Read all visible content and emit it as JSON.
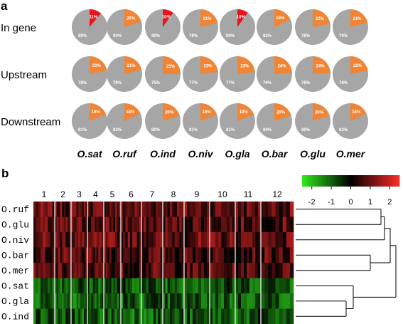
{
  "chart_data": [
    {
      "panel": "a",
      "type": "pie",
      "rows": [
        "In gene",
        "Upstream",
        "Downstream"
      ],
      "columns": [
        "O.sat",
        "O.ruf",
        "O.ind",
        "O.niv",
        "O.gla",
        "O.bar",
        "O.glu",
        "O.mer"
      ],
      "values": [
        [
          [
            11,
            89
          ],
          [
            20,
            80
          ],
          [
            10,
            90
          ],
          [
            21,
            79
          ],
          [
            10,
            90
          ],
          [
            18,
            82
          ],
          [
            22,
            78
          ],
          [
            21,
            79
          ]
        ],
        [
          [
            22,
            78
          ],
          [
            21,
            79
          ],
          [
            25,
            75
          ],
          [
            23,
            77
          ],
          [
            23,
            77
          ],
          [
            24,
            76
          ],
          [
            24,
            76
          ],
          [
            22,
            78
          ]
        ],
        [
          [
            19,
            81
          ],
          [
            18,
            82
          ],
          [
            20,
            80
          ],
          [
            19,
            81
          ],
          [
            19,
            81
          ],
          [
            20,
            80
          ],
          [
            20,
            80
          ],
          [
            18,
            82
          ]
        ]
      ],
      "labels": [
        [
          [
            "11%",
            "89%"
          ],
          [
            "20%",
            "80%"
          ],
          [
            "10%",
            "90%"
          ],
          [
            "21%",
            "79%"
          ],
          [
            "10%",
            "90%"
          ],
          [
            "18%",
            "82%"
          ],
          [
            "22%",
            "78%"
          ],
          [
            "21%",
            "79%"
          ]
        ],
        [
          [
            "22%",
            "78%"
          ],
          [
            "21%",
            "79%"
          ],
          [
            "25%",
            "75%"
          ],
          [
            "23%",
            "77%"
          ],
          [
            "23%",
            "77%"
          ],
          [
            "24%",
            "76%"
          ],
          [
            "24%",
            "76%"
          ],
          [
            "22%",
            "78%"
          ]
        ],
        [
          [
            "19%",
            "81%"
          ],
          [
            "18%",
            "82%"
          ],
          [
            "20%",
            "80%"
          ],
          [
            "19%",
            "81%"
          ],
          [
            "19%",
            "81%"
          ],
          [
            "20%",
            "80%"
          ],
          [
            "20%",
            "80%"
          ],
          [
            "18%",
            "82%"
          ]
        ]
      ],
      "highlight": [
        [
          true,
          false,
          true,
          false,
          true,
          false,
          false,
          false
        ],
        [
          false,
          false,
          false,
          false,
          false,
          false,
          false,
          false
        ],
        [
          false,
          false,
          false,
          false,
          false,
          false,
          false,
          false
        ]
      ],
      "colors": {
        "minor": "#f08535",
        "minor_highlight": "#e8141c",
        "major": "#a6a6a6"
      }
    },
    {
      "panel": "b",
      "type": "heatmap",
      "row_labels": [
        "O.ruf",
        "O.glu",
        "O.niv",
        "O.bar",
        "O.mer",
        "O.sat",
        "O.gla",
        "O.ind"
      ],
      "column_groups": [
        "1",
        "2",
        "3",
        "4",
        "5",
        "6",
        "7",
        "8",
        "9",
        "10",
        "11",
        "12"
      ],
      "row_bias": [
        0.9,
        0.8,
        0.9,
        0.7,
        0.7,
        -0.8,
        -0.9,
        -0.9
      ],
      "scale": {
        "min": -2.5,
        "max": 2.5,
        "ticks": [
          "-2",
          "-1",
          "0",
          "1",
          "2"
        ],
        "colors": {
          "low": "#2eea1e",
          "mid": "#000000",
          "high": "#ff2a2a"
        }
      },
      "dendrogram": true
    }
  ],
  "labels": {
    "panel_a": "a",
    "panel_b": "b"
  }
}
